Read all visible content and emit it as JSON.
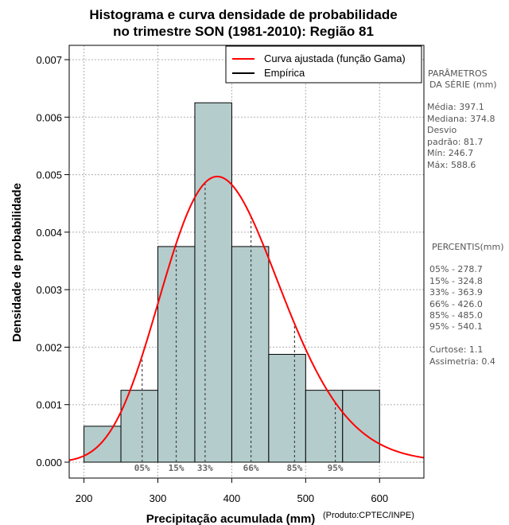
{
  "chart_data": {
    "type": "bar",
    "title_line1": "Histograma e curva densidade de probabilidade",
    "title_line2": "no trimestre SON (1981-2010): Região 81",
    "xlabel": "Precipitação acumulada (mm)",
    "ylabel": "Densidade de probabilidade",
    "credit": "(Produto:CPTEC/INPE)",
    "xlim": [
      180,
      660
    ],
    "ylim": [
      0,
      0.0072
    ],
    "xticks": [
      200,
      300,
      400,
      500,
      600
    ],
    "yticks": [
      0.0,
      0.001,
      0.002,
      0.003,
      0.004,
      0.005,
      0.006,
      0.007
    ],
    "ytick_labels": [
      "0.000",
      "0.001",
      "0.002",
      "0.003",
      "0.004",
      "0.005",
      "0.006",
      "0.007"
    ],
    "bins": [
      {
        "start": 200,
        "end": 250,
        "density": 0.000625
      },
      {
        "start": 250,
        "end": 300,
        "density": 0.00125
      },
      {
        "start": 300,
        "end": 350,
        "density": 0.00375
      },
      {
        "start": 350,
        "end": 400,
        "density": 0.00625
      },
      {
        "start": 400,
        "end": 450,
        "density": 0.00375
      },
      {
        "start": 450,
        "end": 500,
        "density": 0.001875
      },
      {
        "start": 500,
        "end": 550,
        "density": 0.00125
      },
      {
        "start": 550,
        "end": 600,
        "density": 0.00125
      }
    ],
    "gamma_curve": {
      "shape": 23.6,
      "scale": 16.83
    },
    "percentile_lines": [
      {
        "label": "05%",
        "value": 278.7
      },
      {
        "label": "15%",
        "value": 324.8
      },
      {
        "label": "33%",
        "value": 363.9
      },
      {
        "label": "66%",
        "value": 426.0
      },
      {
        "label": "85%",
        "value": 485.0
      },
      {
        "label": "95%",
        "value": 540.1
      }
    ],
    "legend": [
      {
        "label": "Curva ajustada (função Gama)",
        "color": "#ff0000"
      },
      {
        "label": "Empírica",
        "color": "#000000"
      }
    ],
    "colors": {
      "bar_fill": "#b4cccc",
      "bar_stroke": "#000000",
      "curve": "#ff0000",
      "grid": "#b0b0b0"
    }
  },
  "side_panel": {
    "params_title_1": "PARÂMETROS",
    "params_title_2": "DA SÉRIE (mm)",
    "media": "Média:  397.1",
    "mediana": "Mediana:  374.8",
    "desvio_1": "Desvio",
    "desvio_2": "padrão:  81.7",
    "min": "Mín:  246.7",
    "max": "Máx:  588.6",
    "percentis_title": "PERCENTIS(mm)",
    "p05": "05% -  278.7",
    "p15": "15% -  324.8",
    "p33": "33% -  363.9",
    "p66": "66% -  426.0",
    "p85": "85% -  485.0",
    "p95": "95% -  540.1",
    "curtose": "Curtose:  1.1",
    "assimetria": "Assimetria:  0.4"
  }
}
